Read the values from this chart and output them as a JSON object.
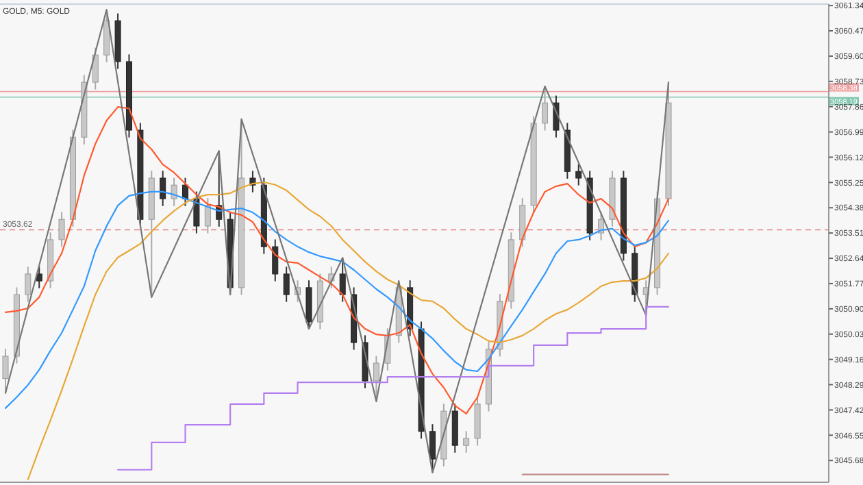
{
  "chart_data": {
    "type": "candlestick",
    "title": "GOLD, M5: GOLD",
    "categories": [
      null,
      null,
      null,
      null,
      null,
      null,
      null,
      null,
      null,
      null,
      null,
      null,
      null,
      null,
      null,
      null,
      null,
      null,
      null,
      null,
      null,
      null,
      null,
      null,
      null,
      null,
      null,
      null,
      null,
      null,
      null,
      null,
      null,
      null,
      null,
      null,
      null,
      null,
      null,
      null,
      null,
      null,
      null,
      null,
      null,
      null,
      null,
      null,
      null,
      null,
      null,
      null,
      null,
      null,
      null,
      null,
      null,
      null,
      null,
      null
    ],
    "ohlc": [
      [
        3048.5,
        3049.52,
        3048.0,
        3049.27
      ],
      [
        3049.27,
        3051.64,
        3049.02,
        3051.39
      ],
      [
        3051.39,
        3052.35,
        3051.14,
        3052.1
      ],
      [
        3052.1,
        3052.35,
        3051.61,
        3051.86
      ],
      [
        3051.86,
        3053.53,
        3051.61,
        3053.28
      ],
      [
        3053.28,
        3054.23,
        3053.03,
        3053.98
      ],
      [
        3053.98,
        3057.06,
        3053.73,
        3056.81
      ],
      [
        3056.81,
        3058.95,
        3056.56,
        3058.7
      ],
      [
        3058.7,
        3059.89,
        3058.45,
        3059.64
      ],
      [
        3059.64,
        3061.2,
        3059.39,
        3060.82
      ],
      [
        3060.82,
        3061.07,
        3059.16,
        3059.41
      ],
      [
        3059.41,
        3059.66,
        3056.8,
        3057.05
      ],
      [
        3057.05,
        3057.3,
        3053.73,
        3053.98
      ],
      [
        3053.98,
        3055.65,
        3051.3,
        3055.4
      ],
      [
        3055.4,
        3055.65,
        3054.44,
        3054.69
      ],
      [
        3054.69,
        3055.41,
        3054.44,
        3055.16
      ],
      [
        3055.16,
        3055.41,
        3054.44,
        3054.69
      ],
      [
        3054.69,
        3054.94,
        3053.5,
        3053.75
      ],
      [
        3053.75,
        3054.71,
        3053.5,
        3054.46
      ],
      [
        3054.46,
        3056.34,
        3053.73,
        3053.98
      ],
      [
        3053.98,
        3054.23,
        3051.39,
        3051.63
      ],
      [
        3051.63,
        3057.43,
        3051.38,
        3055.4
      ],
      [
        3055.4,
        3055.65,
        3054.91,
        3055.16
      ],
      [
        3055.16,
        3055.41,
        3052.79,
        3053.04
      ],
      [
        3053.04,
        3053.29,
        3051.85,
        3052.1
      ],
      [
        3052.1,
        3052.35,
        3051.14,
        3051.39
      ],
      [
        3051.39,
        3051.88,
        3051.14,
        3051.63
      ],
      [
        3051.63,
        3051.88,
        3050.21,
        3050.45
      ],
      [
        3050.45,
        3052.11,
        3050.2,
        3051.86
      ],
      [
        3051.86,
        3052.35,
        3051.61,
        3052.1
      ],
      [
        3052.1,
        3052.66,
        3051.14,
        3051.39
      ],
      [
        3051.39,
        3051.64,
        3049.49,
        3049.74
      ],
      [
        3049.74,
        3049.99,
        3048.17,
        3048.42
      ],
      [
        3048.42,
        3049.28,
        3047.71,
        3049.03
      ],
      [
        3049.03,
        3050.23,
        3048.78,
        3049.98
      ],
      [
        3049.98,
        3051.86,
        3049.73,
        3051.63
      ],
      [
        3051.63,
        3051.88,
        3049.96,
        3050.21
      ],
      [
        3050.21,
        3050.46,
        3046.43,
        3046.68
      ],
      [
        3046.68,
        3046.93,
        3045.26,
        3045.73
      ],
      [
        3045.73,
        3047.63,
        3045.48,
        3047.38
      ],
      [
        3047.38,
        3047.63,
        3045.95,
        3046.2
      ],
      [
        3046.2,
        3046.69,
        3045.95,
        3046.44
      ],
      [
        3046.44,
        3047.87,
        3046.19,
        3047.62
      ],
      [
        3047.62,
        3049.76,
        3047.37,
        3049.51
      ],
      [
        3049.51,
        3051.41,
        3049.26,
        3051.16
      ],
      [
        3051.16,
        3053.53,
        3050.91,
        3053.28
      ],
      [
        3053.28,
        3054.71,
        3053.03,
        3054.46
      ],
      [
        3054.46,
        3057.54,
        3054.21,
        3057.29
      ],
      [
        3057.29,
        3058.56,
        3057.04,
        3057.99
      ],
      [
        3057.99,
        3058.24,
        3056.8,
        3057.05
      ],
      [
        3057.05,
        3057.3,
        3055.38,
        3055.63
      ],
      [
        3055.63,
        3055.88,
        3055.15,
        3055.4
      ],
      [
        3055.4,
        3055.65,
        3053.26,
        3053.51
      ],
      [
        3053.51,
        3054.23,
        3053.26,
        3053.98
      ],
      [
        3053.98,
        3055.65,
        3053.73,
        3055.4
      ],
      [
        3055.4,
        3055.65,
        3052.56,
        3052.81
      ],
      [
        3052.81,
        3053.06,
        3051.14,
        3051.39
      ],
      [
        3051.39,
        3051.88,
        3050.68,
        3051.63
      ],
      [
        3051.63,
        3054.94,
        3051.38,
        3054.69
      ],
      [
        3054.69,
        3058.7,
        3054.44,
        3057.99
      ]
    ],
    "series": [
      {
        "type": "line",
        "color": "#ff5a2e",
        "values": [
          3050.78,
          3050.83,
          3050.92,
          3051.3,
          3052.1,
          3052.81,
          3053.98,
          3055.49,
          3056.58,
          3057.38,
          3057.85,
          3057.8,
          3056.77,
          3056.39,
          3055.87,
          3055.59,
          3055.21,
          3054.83,
          3054.5,
          3054.41,
          3054.22,
          3054.13,
          3053.89,
          3053.28,
          3052.76,
          3052.52,
          3052.48,
          3052.24,
          3052.0,
          3051.77,
          3051.39,
          3050.59,
          3050.21,
          3050.02,
          3049.98,
          3050.07,
          3050.35,
          3049.36,
          3048.66,
          3048.19,
          3047.57,
          3047.29,
          3047.85,
          3049.03,
          3050.31,
          3051.86,
          3053.32,
          3054.22,
          3054.93,
          3055.12,
          3055.21,
          3054.83,
          3054.55,
          3054.69,
          3054.36,
          3053.51,
          3053.04,
          3053.18,
          3053.84,
          3054.69
        ]
      },
      {
        "type": "line",
        "color": "#3399ff",
        "values": [
          3047.48,
          3047.86,
          3048.28,
          3048.8,
          3049.46,
          3050.07,
          3050.87,
          3051.68,
          3052.9,
          3053.75,
          3054.46,
          3054.79,
          3054.88,
          3054.93,
          3054.93,
          3054.83,
          3054.69,
          3054.55,
          3054.41,
          3054.27,
          3054.32,
          3054.36,
          3054.22,
          3053.94,
          3053.56,
          3053.28,
          3053.04,
          3052.85,
          3052.71,
          3052.62,
          3052.52,
          3052.24,
          3051.91,
          3051.58,
          3051.3,
          3050.97,
          3050.5,
          3050.21,
          3049.88,
          3049.46,
          3049.08,
          3048.8,
          3048.75,
          3049.18,
          3049.74,
          3050.31,
          3050.87,
          3051.49,
          3052.1,
          3052.81,
          3053.23,
          3053.28,
          3053.42,
          3053.61,
          3053.66,
          3053.32,
          3053.09,
          3053.18,
          3053.42,
          3053.94
        ]
      },
      {
        "type": "line",
        "color": "#e8a838",
        "values": [
          null,
          null,
          3045.03,
          3046.07,
          3047.06,
          3048.09,
          3049.18,
          3050.31,
          3051.39,
          3052.19,
          3052.67,
          3052.9,
          3053.14,
          3053.56,
          3053.94,
          3054.27,
          3054.55,
          3054.74,
          3054.83,
          3054.83,
          3054.88,
          3055.07,
          3055.21,
          3055.26,
          3055.17,
          3054.98,
          3054.65,
          3054.32,
          3054.08,
          3053.75,
          3053.28,
          3052.9,
          3052.52,
          3052.19,
          3051.91,
          3051.72,
          3051.44,
          3051.2,
          3051.16,
          3050.92,
          3050.54,
          3050.21,
          3050.02,
          3049.79,
          3049.74,
          3049.84,
          3049.98,
          3050.21,
          3050.5,
          3050.73,
          3050.87,
          3051.11,
          3051.39,
          3051.68,
          3051.82,
          3051.86,
          3051.86,
          3051.96,
          3052.29,
          3052.81
        ]
      },
      {
        "type": "line",
        "color": "#777777",
        "values": [
          3048.0,
          null,
          null,
          null,
          null,
          null,
          null,
          null,
          null,
          3061.2,
          null,
          null,
          null,
          3051.3,
          null,
          null,
          null,
          null,
          null,
          3056.34,
          3051.39,
          3057.43,
          null,
          null,
          null,
          null,
          null,
          3050.21,
          null,
          null,
          3052.66,
          null,
          null,
          3047.71,
          null,
          3051.86,
          null,
          null,
          3045.26,
          null,
          null,
          null,
          null,
          null,
          null,
          null,
          null,
          null,
          3058.56,
          null,
          null,
          null,
          null,
          null,
          null,
          null,
          null,
          3050.68,
          null,
          3058.7
        ]
      },
      {
        "type": "step",
        "color": "#b37ff0",
        "values": [
          null,
          null,
          null,
          null,
          null,
          null,
          null,
          null,
          null,
          null,
          3045.36,
          3045.36,
          3045.36,
          3046.3,
          3046.3,
          3046.3,
          3046.91,
          3046.91,
          3046.91,
          3046.91,
          3047.62,
          3047.62,
          3047.62,
          3048.0,
          3048.0,
          3048.0,
          3048.37,
          3048.37,
          3048.37,
          3048.37,
          3048.37,
          3048.37,
          3048.37,
          3048.37,
          3048.56,
          3048.56,
          3048.56,
          3048.56,
          3048.56,
          3048.56,
          3048.56,
          3048.56,
          3048.56,
          3048.94,
          3048.94,
          3048.94,
          3048.94,
          3049.65,
          3049.65,
          3049.65,
          3050.07,
          3050.07,
          3050.07,
          3050.21,
          3050.21,
          3050.21,
          3050.21,
          3050.97,
          3050.97,
          3050.97
        ]
      },
      {
        "type": "step",
        "color": "#c08a8a",
        "values": [
          null,
          null,
          null,
          null,
          null,
          null,
          null,
          null,
          null,
          null,
          null,
          null,
          null,
          null,
          null,
          null,
          null,
          null,
          null,
          null,
          null,
          null,
          null,
          null,
          null,
          null,
          null,
          null,
          null,
          null,
          null,
          null,
          null,
          null,
          null,
          null,
          null,
          null,
          null,
          null,
          null,
          null,
          null,
          null,
          null,
          null,
          3045.2,
          3045.2,
          3045.2,
          3045.2,
          3045.2,
          3045.2,
          3045.2,
          3045.2,
          3045.2,
          3045.2,
          3045.2,
          3045.2,
          3045.2,
          3045.2
        ]
      }
    ],
    "ylim": [
      3044.93,
      3061.39
    ],
    "yticks": [
      3061.34,
      3060.47,
      {
        "value": 3059.6,
        "label": "3059.60"
      },
      3058.73,
      3057.86,
      3056.99,
      3056.12,
      3055.25,
      3054.38,
      3053.51,
      3052.64,
      3051.77,
      {
        "value": 3050.9,
        "label": "3050.90"
      },
      3050.03,
      3049.16,
      3048.29,
      3047.42,
      3046.55,
      3045.68
    ],
    "ref_lines": [
      {
        "axis": "y",
        "value": 3058.38,
        "label": "3058.38",
        "color": "#f0a0a0",
        "line_style": "solid"
      },
      {
        "axis": "y",
        "value": 3058.19,
        "label": "3058.19",
        "color": "#80c8b0",
        "line_style": "solid"
      },
      {
        "axis": "y",
        "value": 3053.62,
        "label": "3053.62",
        "color": "#e08080",
        "line_style": "dashed"
      }
    ],
    "tick_labels": "y",
    "grid": false
  }
}
